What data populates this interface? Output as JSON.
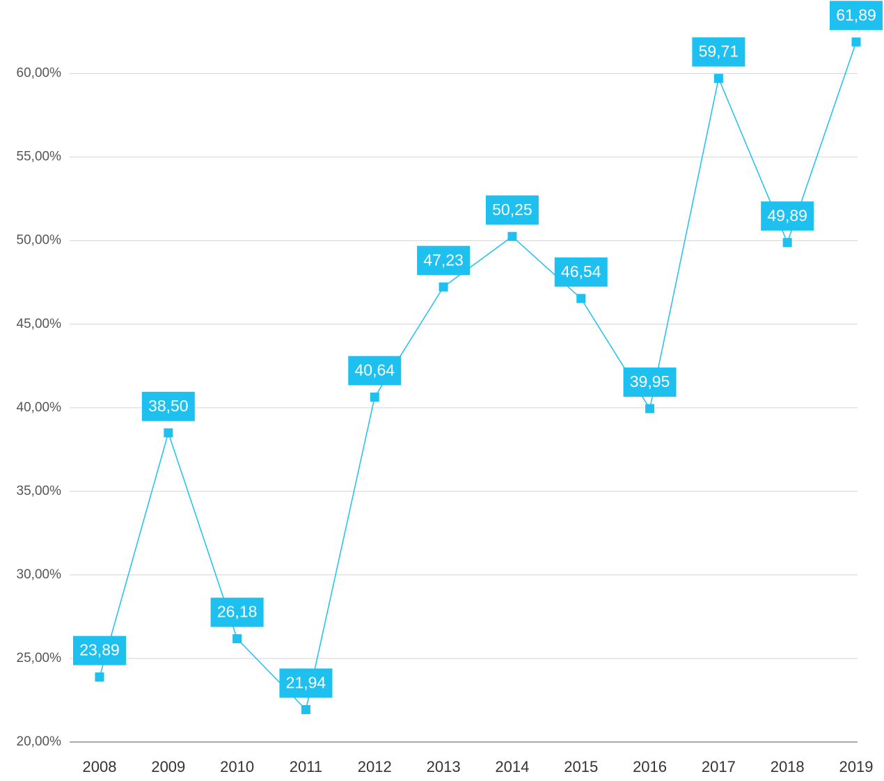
{
  "chart_data": {
    "type": "line",
    "categories": [
      "2008",
      "2009",
      "2010",
      "2011",
      "2012",
      "2013",
      "2014",
      "2015",
      "2016",
      "2017",
      "2018",
      "2019"
    ],
    "series": [
      {
        "color": "#1ec0ef",
        "values": [
          23.89,
          38.5,
          26.18,
          21.94,
          40.64,
          47.23,
          50.25,
          46.54,
          39.95,
          59.71,
          49.89,
          61.89
        ],
        "value_labels": [
          "23,89",
          "38,50",
          "26,18",
          "21,94",
          "40,64",
          "47,23",
          "50,25",
          "46,54",
          "39,95",
          "59,71",
          "49,89",
          "61,89"
        ]
      }
    ],
    "ylim": [
      20,
      64.4
    ],
    "yticks": [
      {
        "value": 20,
        "label": "20,00%"
      },
      {
        "value": 25,
        "label": "25,00%"
      },
      {
        "value": 30,
        "label": "30,00%"
      },
      {
        "value": 35,
        "label": "35,00%"
      },
      {
        "value": 40,
        "label": "40,00%"
      },
      {
        "value": 45,
        "label": "45,00%"
      },
      {
        "value": 50,
        "label": "50,00%"
      },
      {
        "value": 55,
        "label": "55,00%"
      },
      {
        "value": 60,
        "label": "60,00%"
      }
    ],
    "grid": true
  }
}
